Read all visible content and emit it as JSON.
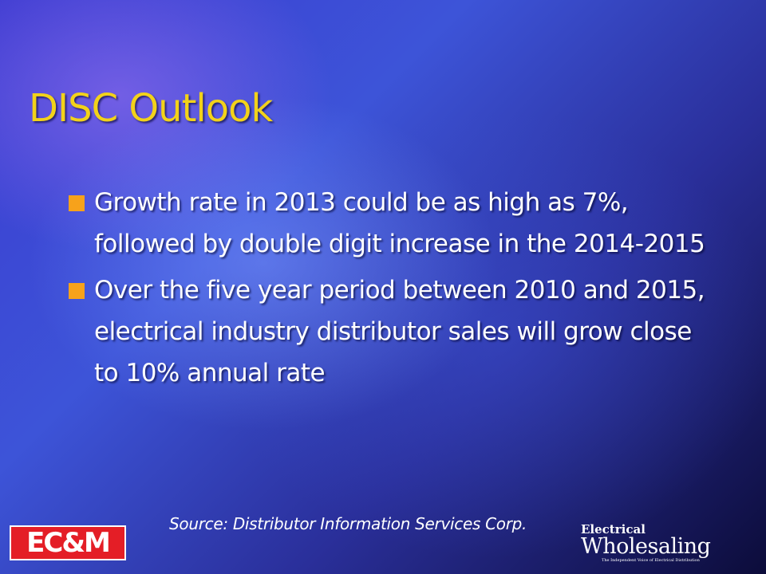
{
  "title": "DISC Outlook",
  "bullets": [
    "Growth rate in 2013 could be as high as 7%, followed by double digit increase in the 2014-2015",
    "Over the five year period between 2010 and 2015, electrical industry distributor sales will grow close to 10% annual rate"
  ],
  "source": "Source: Distributor Information Services Corp.",
  "logos": {
    "left": "EC&M",
    "right_top": "Electrical",
    "right_main": "Wholesaling",
    "right_tagline": "The Independent Voice of Electrical Distribution"
  }
}
